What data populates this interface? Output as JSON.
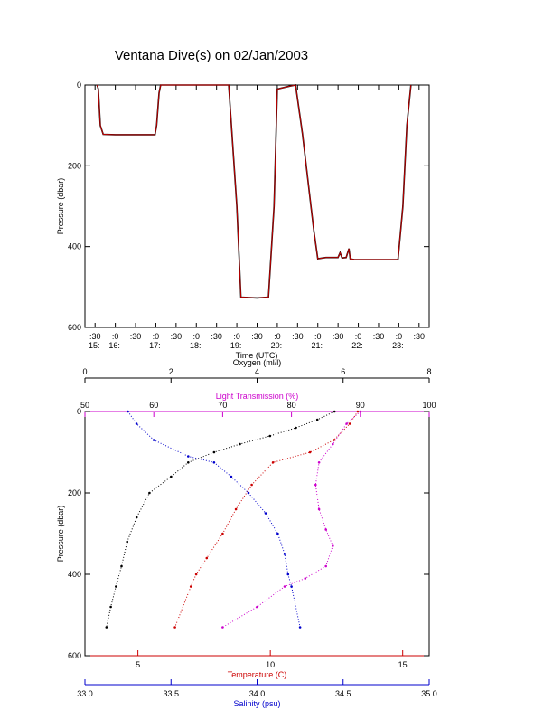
{
  "title": "Ventana Dive(s) on 02/Jan/2003",
  "chart_data": [
    {
      "type": "line",
      "xlabel": "Time (UTC)",
      "ylabel": "Pressure (dbar)",
      "xlim": [
        15.25,
        23.75
      ],
      "ylim": [
        600,
        0
      ],
      "x_ticks": [
        {
          "top": ":30",
          "bottom": "15:",
          "x": 15.5
        },
        {
          "top": ":0",
          "bottom": "16:",
          "x": 16.0
        },
        {
          "top": ":30",
          "bottom": "",
          "x": 16.5
        },
        {
          "top": ":0",
          "bottom": "17:",
          "x": 17.0
        },
        {
          "top": ":30",
          "bottom": "",
          "x": 17.5
        },
        {
          "top": ":0",
          "bottom": "18:",
          "x": 18.0
        },
        {
          "top": ":30",
          "bottom": "",
          "x": 18.5
        },
        {
          "top": ":0",
          "bottom": "19:",
          "x": 19.0
        },
        {
          "top": ":30",
          "bottom": "",
          "x": 19.5
        },
        {
          "top": ":0",
          "bottom": "20:",
          "x": 20.0
        },
        {
          "top": ":30",
          "bottom": "",
          "x": 20.5
        },
        {
          "top": ":0",
          "bottom": "21:",
          "x": 21.0
        },
        {
          "top": ":30",
          "bottom": "",
          "x": 21.5
        },
        {
          "top": ":0",
          "bottom": "22:",
          "x": 22.0
        },
        {
          "top": ":30",
          "bottom": "",
          "x": 22.5
        },
        {
          "top": ":0",
          "bottom": "23:",
          "x": 23.0
        },
        {
          "top": ":30",
          "bottom": "",
          "x": 23.5
        }
      ],
      "y_ticks": [
        "0",
        "200",
        "400",
        "600"
      ],
      "y_tick_values": [
        0,
        200,
        400,
        600
      ],
      "series": [
        {
          "color": "#cc0000",
          "x": [
            15.55,
            15.58,
            15.63,
            15.7,
            16.0,
            16.5,
            16.98,
            17.02,
            17.08,
            17.12,
            17.5,
            18.0,
            18.5,
            18.8,
            19.0,
            19.1,
            19.5,
            19.78,
            19.92,
            20.0,
            20.3,
            20.45,
            20.62,
            20.9,
            21.0,
            21.2,
            21.5,
            21.55,
            21.6,
            21.7,
            21.77,
            21.8,
            21.9,
            22.0,
            22.5,
            22.98,
            23.1,
            23.2,
            23.3
          ],
          "y": [
            0,
            10,
            100,
            122,
            123,
            123,
            123,
            100,
            20,
            0,
            0,
            0,
            0,
            0,
            300,
            525,
            527,
            525,
            300,
            10,
            3,
            0,
            120,
            360,
            430,
            427,
            427,
            415,
            428,
            427,
            405,
            430,
            432,
            432,
            432,
            432,
            300,
            100,
            0
          ]
        }
      ]
    },
    {
      "type": "scatter",
      "ylabel": "Pressure (dbar)",
      "ylim": [
        600,
        0
      ],
      "y_ticks": [
        "0",
        "200",
        "400",
        "600"
      ],
      "y_tick_values": [
        0,
        200,
        400,
        600
      ],
      "axes": [
        {
          "position": "top",
          "label": "Oxygen (ml/l)",
          "color": "#000000",
          "range": [
            0,
            8
          ],
          "ticks": [
            0,
            2,
            4,
            6,
            8
          ],
          "tick_labels": [
            "0",
            "2",
            "4",
            "6",
            "8"
          ]
        },
        {
          "position": "top",
          "label": "Light Transmission (%)",
          "color": "#cc00cc",
          "range": [
            50,
            100
          ],
          "ticks": [
            50,
            60,
            70,
            80,
            90,
            100
          ],
          "tick_labels": [
            "50",
            "60",
            "70",
            "80",
            "90",
            "100"
          ]
        },
        {
          "position": "bottom",
          "label": "Temperature (C)",
          "color": "#cc0000",
          "range": [
            3,
            16
          ],
          "ticks": [
            5,
            10,
            15
          ],
          "tick_labels": [
            "5",
            "10",
            "15"
          ]
        },
        {
          "position": "bottom",
          "label": "Salinity (psu)",
          "color": "#0000cc",
          "range": [
            33.0,
            35.0
          ],
          "ticks": [
            33.0,
            33.5,
            34.0,
            34.5,
            35.0
          ],
          "tick_labels": [
            "33.0",
            "33.5",
            "34.0",
            "34.5",
            "35.0"
          ]
        }
      ],
      "series": [
        {
          "axis": "Oxygen (ml/l)",
          "color": "#000000",
          "x": [
            5.8,
            5.4,
            4.9,
            4.3,
            3.6,
            3.0,
            2.4,
            2.0,
            1.5,
            1.2,
            0.98,
            0.85,
            0.72,
            0.6,
            0.5
          ],
          "y": [
            0,
            20,
            40,
            60,
            80,
            100,
            125,
            160,
            200,
            260,
            320,
            380,
            430,
            480,
            530
          ]
        },
        {
          "axis": "Light Transmission (%)",
          "color": "#cc00cc",
          "x": [
            90.0,
            88.0,
            86.0,
            84.0,
            83.5,
            84.0,
            85.0,
            86.0,
            85.0,
            82.0,
            79.0,
            75.0,
            70.0
          ],
          "y": [
            0,
            30,
            80,
            125,
            180,
            240,
            290,
            330,
            380,
            410,
            430,
            480,
            530
          ]
        },
        {
          "axis": "Temperature (C)",
          "color": "#cc0000",
          "x": [
            13.3,
            13.0,
            12.4,
            11.5,
            10.1,
            9.3,
            8.7,
            8.2,
            7.6,
            7.2,
            7.0,
            6.4
          ],
          "y": [
            0,
            30,
            70,
            100,
            125,
            180,
            240,
            300,
            360,
            400,
            430,
            530
          ]
        },
        {
          "axis": "Salinity (psu)",
          "color": "#0000cc",
          "x": [
            33.25,
            33.3,
            33.4,
            33.6,
            33.75,
            33.85,
            33.95,
            34.05,
            34.12,
            34.16,
            34.18,
            34.2,
            34.25
          ],
          "y": [
            0,
            30,
            70,
            110,
            125,
            160,
            200,
            250,
            300,
            350,
            400,
            430,
            530
          ]
        }
      ]
    }
  ]
}
